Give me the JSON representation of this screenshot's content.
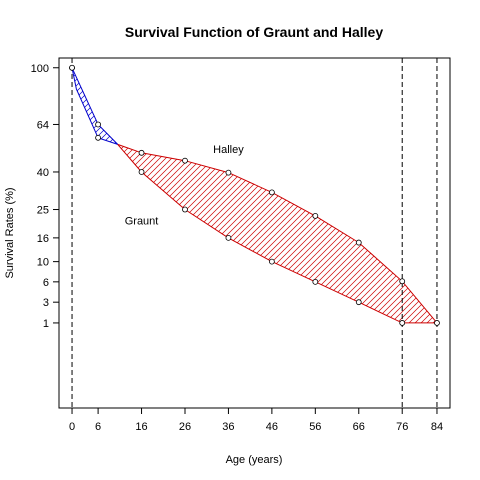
{
  "chart_data": {
    "type": "line",
    "title": "Survival Function of Graunt and Halley",
    "xlabel": "Age (years)",
    "ylabel": "Survival Rates (%)",
    "xlim": [
      -3,
      87
    ],
    "ylim": [
      -4,
      107
    ],
    "x_ticks": [
      0,
      6,
      16,
      26,
      36,
      46,
      56,
      66,
      76,
      84
    ],
    "y_ticks": [
      1,
      3,
      6,
      10,
      16,
      25,
      40,
      64,
      100
    ],
    "vlines": [
      0,
      76,
      84
    ],
    "series": [
      {
        "name": "Graunt",
        "color": "#0000cc",
        "x": [
          0,
          6,
          16,
          26,
          36,
          46,
          56,
          66,
          76
        ],
        "y": [
          100,
          64,
          40,
          25,
          16,
          10,
          6,
          3,
          1
        ]
      },
      {
        "name": "Halley",
        "color": "#cc0000",
        "x": [
          0,
          1,
          6,
          16,
          26,
          36,
          46,
          56,
          66,
          76,
          84
        ],
        "y": [
          100,
          85.5,
          56.7,
          49,
          45.2,
          39.7,
          31.4,
          22.8,
          14.7,
          6.1,
          1
        ]
      }
    ],
    "annotations": [
      {
        "text": "Halley",
        "x": 36,
        "y": 49
      },
      {
        "text": "Graunt",
        "x": 16,
        "y": 20
      }
    ],
    "fill_colors": {
      "graunt_above": "#0000cc",
      "halley_above": "#cc0000"
    }
  }
}
